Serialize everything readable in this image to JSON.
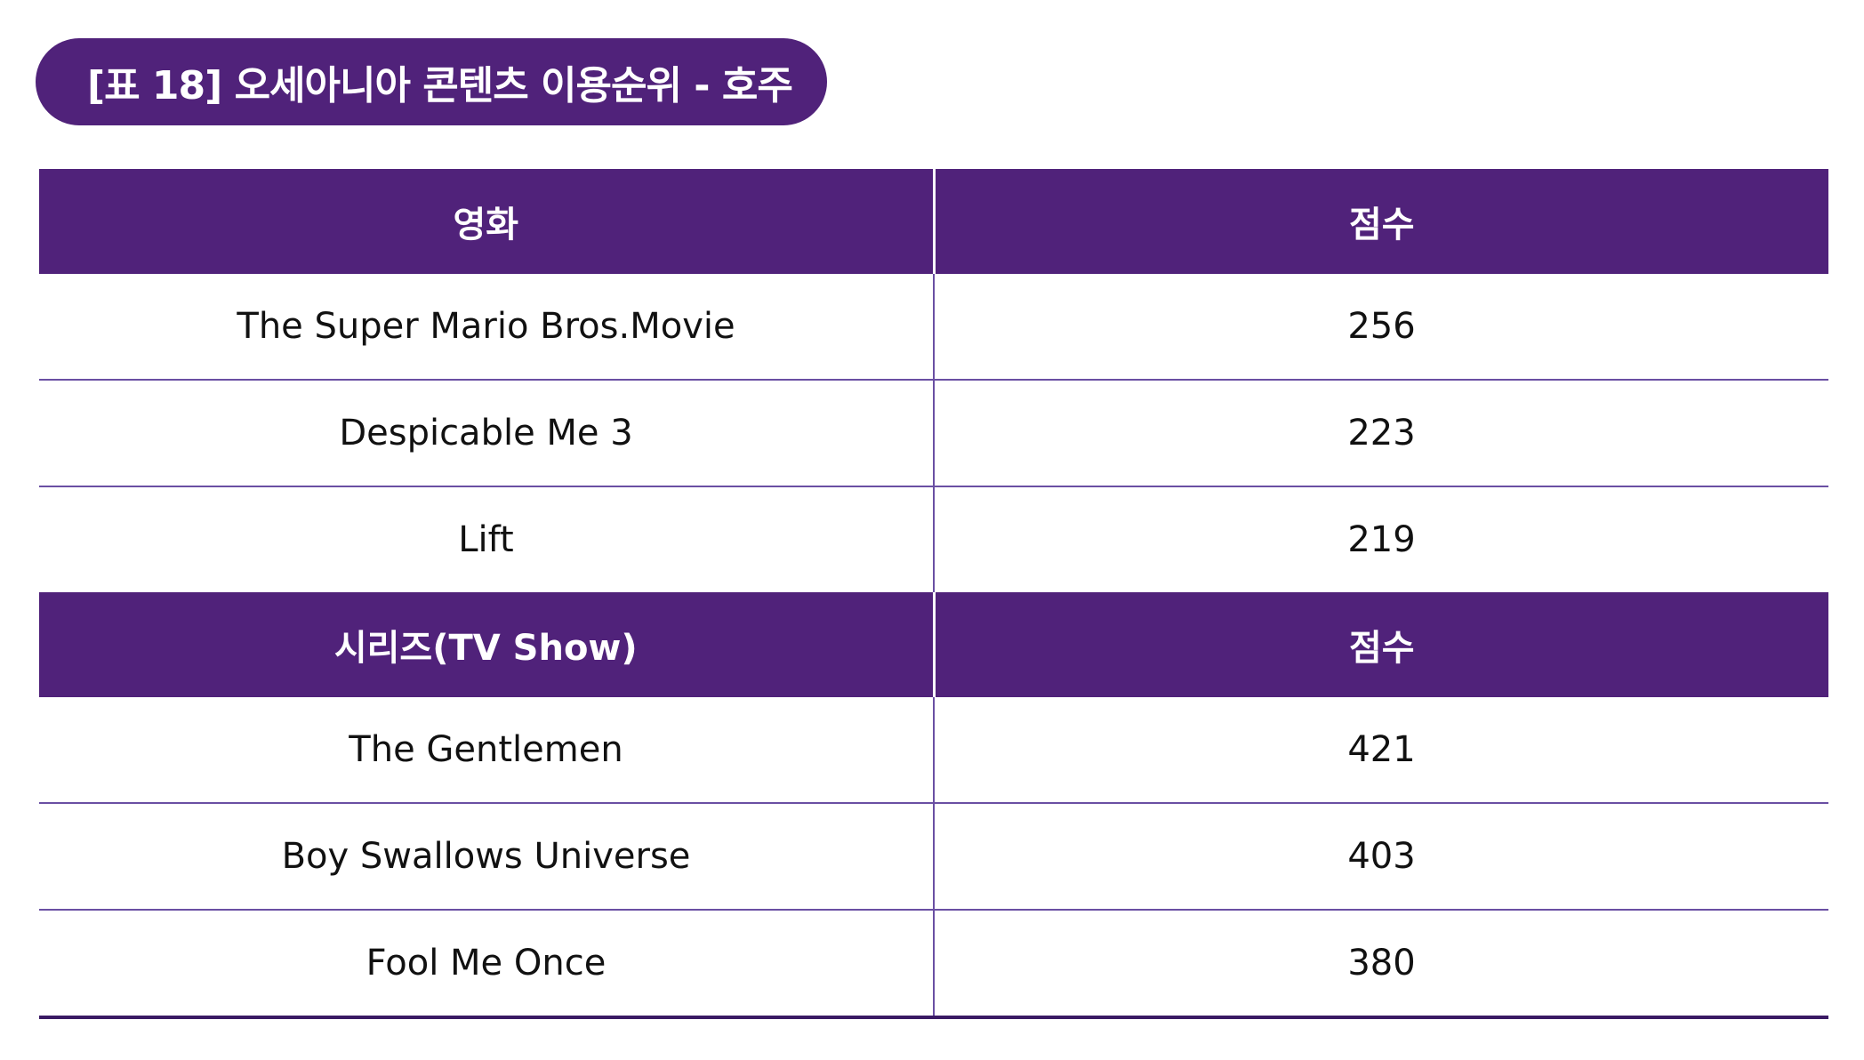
{
  "title": "[표 18] 오세아니아 콘텐츠 이용순위 - 호주",
  "colors": {
    "header_bg": "#50227a",
    "header_text": "#ffffff",
    "row_divider": "#6a4fa3"
  },
  "sections": [
    {
      "header": {
        "category": "영화",
        "score": "점수"
      },
      "rows": [
        {
          "title": "The Super Mario Bros.Movie",
          "score": "256"
        },
        {
          "title": "Despicable Me 3",
          "score": "223"
        },
        {
          "title": "Lift",
          "score": "219"
        }
      ]
    },
    {
      "header": {
        "category": "시리즈(TV Show)",
        "score": "점수"
      },
      "rows": [
        {
          "title": "The Gentlemen",
          "score": "421"
        },
        {
          "title": "Boy Swallows Universe",
          "score": "403"
        },
        {
          "title": "Fool Me Once",
          "score": "380"
        }
      ]
    }
  ]
}
